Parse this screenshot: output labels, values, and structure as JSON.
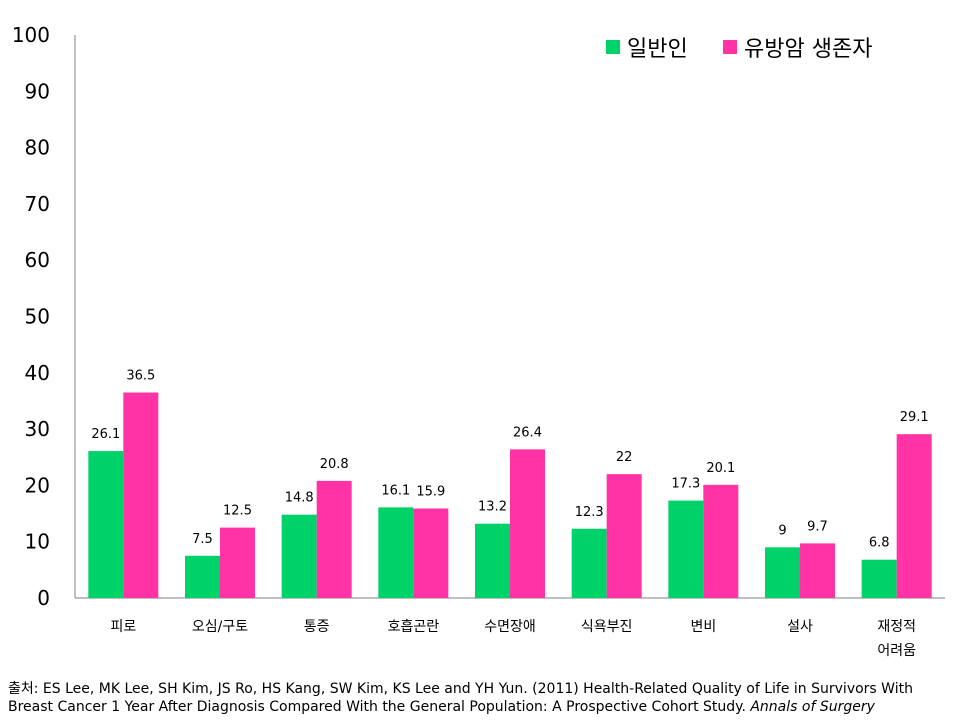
{
  "chart_data": {
    "type": "bar",
    "categories": [
      [
        "피로"
      ],
      [
        "오심/구토"
      ],
      [
        "통증"
      ],
      [
        "호흡곤란"
      ],
      [
        "수면장애"
      ],
      [
        "식욕부진"
      ],
      [
        "변비"
      ],
      [
        "설사"
      ],
      [
        "재정적",
        "어려움"
      ]
    ],
    "series": [
      {
        "name": "일반인",
        "color": "#00d26a",
        "values": [
          26.1,
          7.5,
          14.8,
          16.1,
          13.2,
          12.3,
          17.3,
          9,
          6.8
        ],
        "labels": [
          "26.1",
          "7.5",
          "14.8",
          "16.1",
          "13.2",
          "12.3",
          "17.3",
          "9",
          "6.8"
        ]
      },
      {
        "name": "유방암 생존자",
        "color": "#ff33a6",
        "values": [
          36.5,
          12.5,
          20.8,
          15.9,
          26.4,
          22,
          20.1,
          9.7,
          29.1
        ],
        "labels": [
          "36.5",
          "12.5",
          "20.8",
          "15.9",
          "26.4",
          "22",
          "20.1",
          "9.7",
          "29.1"
        ]
      }
    ],
    "ylim": [
      0,
      100
    ],
    "yticks": [
      "0",
      "10",
      "20",
      "30",
      "40",
      "50",
      "60",
      "70",
      "80",
      "90",
      "100"
    ],
    "grid": false,
    "legend_position": "top-right"
  },
  "source": {
    "text": "출처: ES Lee, MK Lee, SH Kim, JS Ro, HS Kang, SW Kim, KS Lee and YH Yun. (2011) Health-Related Quality of Life in Survivors With Breast Cancer 1 Year After Diagnosis Compared With the General Population: A Prospective Cohort Study.",
    "journal": "Annals of Surgery"
  }
}
